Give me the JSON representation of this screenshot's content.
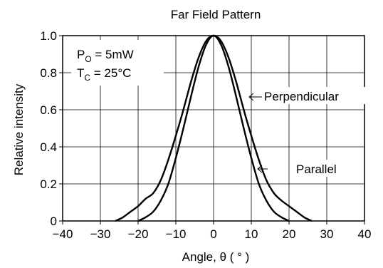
{
  "chart_data": {
    "type": "line",
    "title": "Far Field Pattern",
    "xlabel": "Angle, θ  ( ° )",
    "ylabel": "Relative intensity",
    "xlim": [
      -40,
      40
    ],
    "ylim": [
      0,
      1.0
    ],
    "xticks": [
      "−40",
      "−30",
      "−20",
      "−10",
      "0",
      "10",
      "20",
      "30",
      "40"
    ],
    "xtick_values": [
      -40,
      -30,
      -20,
      -10,
      0,
      10,
      20,
      30,
      40
    ],
    "yticks": [
      "0",
      "0.2",
      "0.4",
      "0.6",
      "0.8",
      "1.0"
    ],
    "ytick_values": [
      0,
      0.2,
      0.4,
      0.6,
      0.8,
      1.0
    ],
    "grid": true,
    "conditions": {
      "po_main": "P",
      "po_sub": "O",
      "po_rest": " = 5mW",
      "tc_main": "T",
      "tc_sub": "C",
      "tc_rest": " = 25°C"
    },
    "series": [
      {
        "name": "Perpendicular",
        "x": [
          -26,
          -24,
          -22,
          -20,
          -18,
          -16,
          -14,
          -12,
          -10,
          -8,
          -6,
          -4,
          -2,
          0,
          2,
          4,
          6,
          8,
          10,
          12,
          14,
          16,
          18,
          20,
          22,
          24,
          26
        ],
        "y": [
          0.0,
          0.02,
          0.05,
          0.08,
          0.12,
          0.15,
          0.22,
          0.33,
          0.46,
          0.6,
          0.75,
          0.88,
          0.97,
          1.0,
          0.97,
          0.88,
          0.75,
          0.6,
          0.46,
          0.33,
          0.22,
          0.15,
          0.11,
          0.08,
          0.05,
          0.02,
          0.0
        ]
      },
      {
        "name": "Parallel",
        "x": [
          -20,
          -18,
          -16,
          -14,
          -12,
          -10,
          -8,
          -6,
          -4,
          -2,
          0,
          2,
          4,
          6,
          8,
          10,
          12,
          14,
          16,
          18,
          20
        ],
        "y": [
          0.0,
          0.02,
          0.05,
          0.11,
          0.2,
          0.34,
          0.5,
          0.67,
          0.83,
          0.95,
          1.0,
          0.95,
          0.83,
          0.67,
          0.5,
          0.34,
          0.2,
          0.11,
          0.05,
          0.02,
          0.0
        ]
      }
    ],
    "annotations": [
      {
        "text": "Perpendicular",
        "series": "Perpendicular"
      },
      {
        "text": "Parallel",
        "series": "Parallel"
      }
    ]
  }
}
